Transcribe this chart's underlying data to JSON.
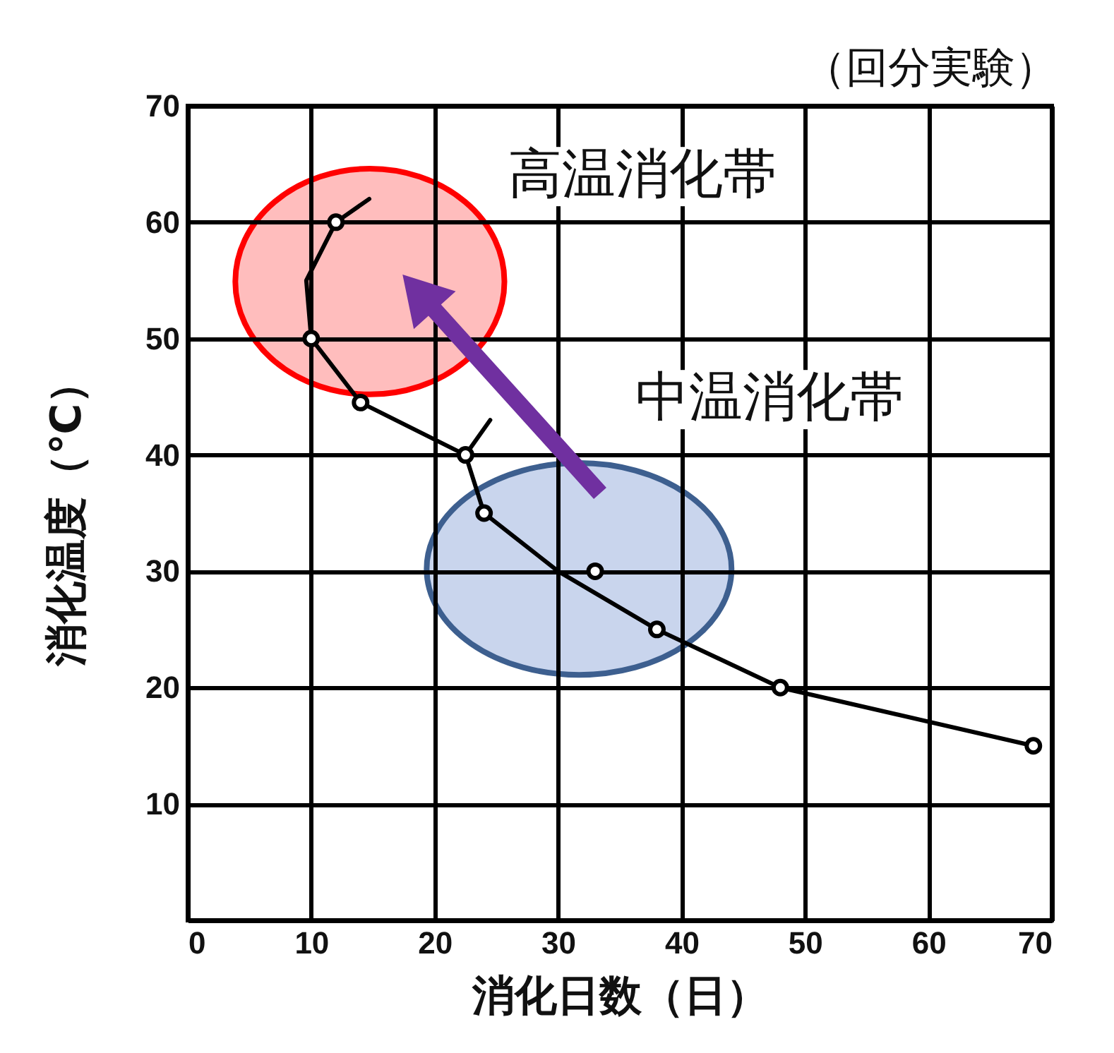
{
  "chart_data": {
    "type": "scatter",
    "subtitle": "（回分実験）",
    "xlabel": "消化日数（日）",
    "ylabel": "消化温度（℃）",
    "xlim": [
      0,
      70
    ],
    "ylim": [
      0,
      70
    ],
    "xticks": [
      0,
      10,
      20,
      30,
      40,
      50,
      60,
      70
    ],
    "yticks": [
      10,
      20,
      30,
      40,
      50,
      60,
      70
    ],
    "grid": true,
    "series": [
      {
        "type": "line",
        "color": "#000000",
        "marker": "none",
        "x": [
          14.7,
          12,
          9.6,
          10,
          14,
          22.5,
          24,
          30,
          38,
          48,
          68.5
        ],
        "values": [
          62,
          60,
          55,
          50,
          44.5,
          40,
          35,
          30,
          25,
          20,
          15
        ]
      },
      {
        "type": "line",
        "color": "#000000",
        "marker": "none",
        "x": [
          22.5,
          24.5
        ],
        "values": [
          40,
          43
        ]
      },
      {
        "color": "#000000",
        "marker": "circle",
        "x": [
          12,
          10,
          14,
          22.5,
          24,
          33,
          38,
          48,
          68.5
        ],
        "values": [
          60,
          50,
          44.5,
          40,
          35,
          30,
          25,
          20,
          15
        ]
      }
    ],
    "annotations": [
      "高温消化帯",
      "中温消化帯"
    ]
  }
}
